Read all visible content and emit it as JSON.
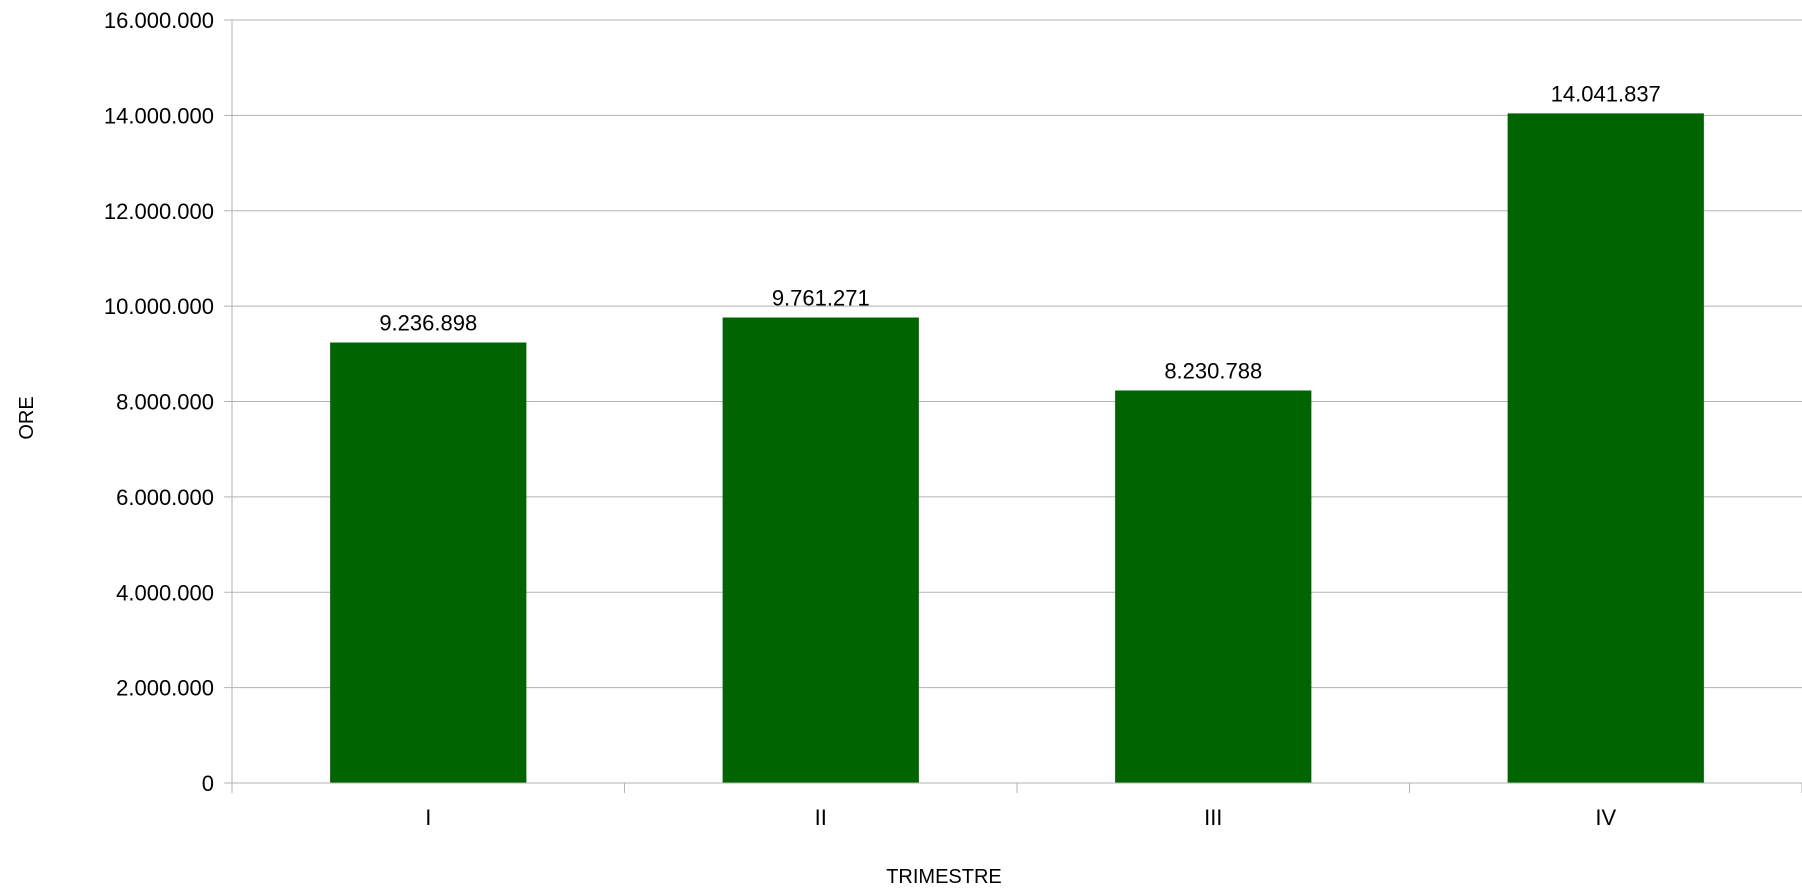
{
  "chart_data": {
    "type": "bar",
    "title": "",
    "xlabel": "TRIMESTRE",
    "ylabel": "ORE",
    "categories": [
      "I",
      "II",
      "III",
      "IV"
    ],
    "series": [
      {
        "values": [
          9236898,
          9761271,
          8230788,
          14041837
        ]
      }
    ],
    "value_labels": [
      "9.236.898",
      "9.761.271",
      "8.230.788",
      "14.041.837"
    ],
    "ylim": [
      0,
      16000000
    ],
    "y_ticks": [
      0,
      2000000,
      4000000,
      6000000,
      8000000,
      10000000,
      12000000,
      14000000,
      16000000
    ],
    "y_tick_labels": [
      "0",
      "2.000.000",
      "4.000.000",
      "6.000.000",
      "8.000.000",
      "10.000.000",
      "12.000.000",
      "14.000.000",
      "16.000.000"
    ],
    "grid": true,
    "legend": "none",
    "colors": {
      "bar": "#006400",
      "grid": "#b3b3b3",
      "axis": "#b3b3b3"
    }
  }
}
